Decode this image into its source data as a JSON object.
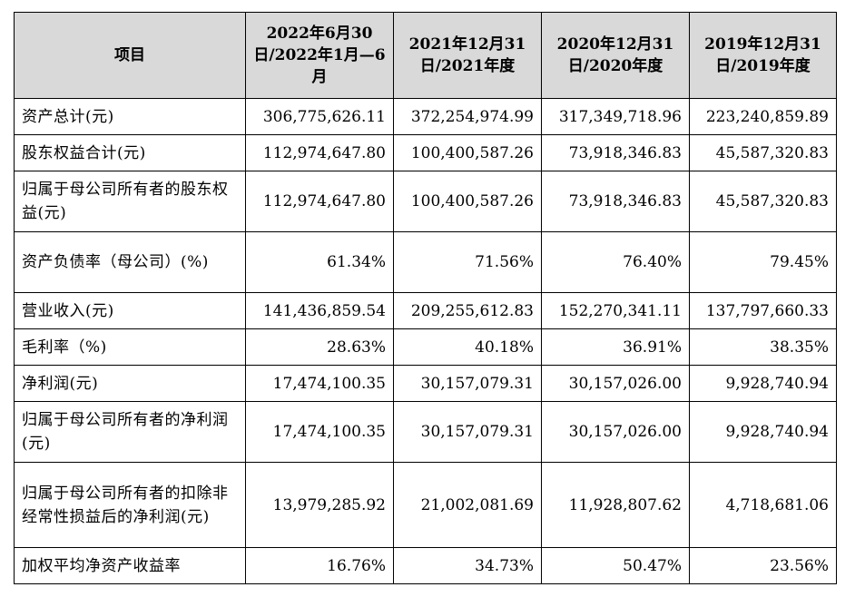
{
  "table": {
    "headers": [
      "项目",
      "2022年6月30日/2022年1月—6月",
      "2021年12月31日/2021年度",
      "2020年12月31日/2020年度",
      "2019年12月31日/2019年度"
    ],
    "rows": [
      {
        "label": "资产总计(元)",
        "values": [
          "306,775,626.11",
          "372,254,974.99",
          "317,349,718.96",
          "223,240,859.89"
        ]
      },
      {
        "label": "股东权益合计(元)",
        "values": [
          "112,974,647.80",
          "100,400,587.26",
          "73,918,346.83",
          "45,587,320.83"
        ]
      },
      {
        "label": "归属于母公司所有者的股东权益(元)",
        "values": [
          "112,974,647.80",
          "100,400,587.26",
          "73,918,346.83",
          "45,587,320.83"
        ]
      },
      {
        "label": "资产负债率（母公司）(%)",
        "values": [
          "61.34%",
          "71.56%",
          "76.40%",
          "79.45%"
        ]
      },
      {
        "label": "营业收入(元)",
        "values": [
          "141,436,859.54",
          "209,255,612.83",
          "152,270,341.11",
          "137,797,660.33"
        ]
      },
      {
        "label": "毛利率（%)",
        "values": [
          "28.63%",
          "40.18%",
          "36.91%",
          "38.35%"
        ]
      },
      {
        "label": "净利润(元)",
        "values": [
          "17,474,100.35",
          "30,157,079.31",
          "30,157,026.00",
          "9,928,740.94"
        ]
      },
      {
        "label": "归属于母公司所有者的净利润(元)",
        "values": [
          "17,474,100.35",
          "30,157,079.31",
          "30,157,026.00",
          "9,928,740.94"
        ]
      },
      {
        "label": "归属于母公司所有者的扣除非经常性损益后的净利润(元)",
        "values": [
          "13,979,285.92",
          "21,002,081.69",
          "11,928,807.62",
          "4,718,681.06"
        ]
      },
      {
        "label": "加权平均净资产收益率",
        "values": [
          "16.76%",
          "34.73%",
          "50.47%",
          "23.56%"
        ]
      }
    ]
  }
}
